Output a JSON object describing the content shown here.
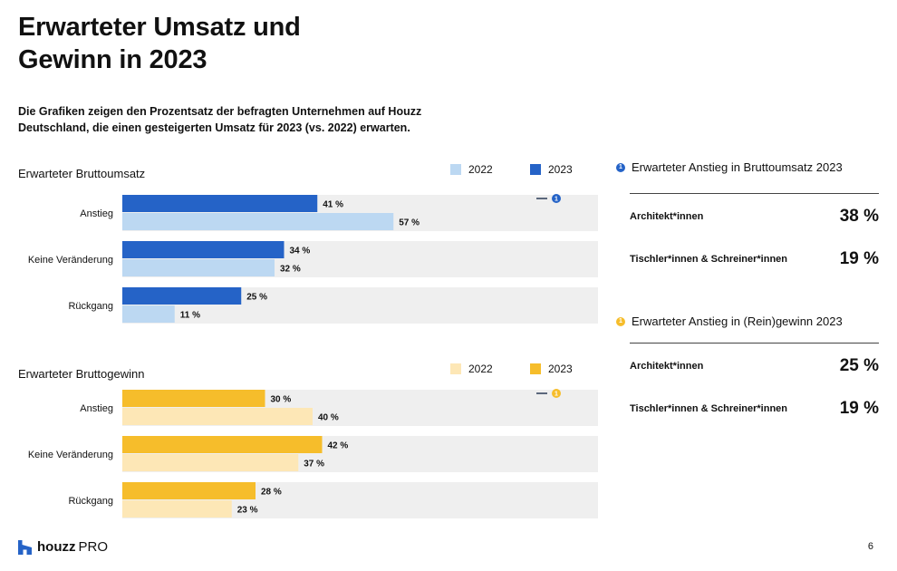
{
  "title": "Erwarteter Umsatz und Gewinn in 2023",
  "subtitle": "Die Grafiken zeigen den Prozentsatz der befragten Unternehmen auf Houzz Deutschland, die einen gesteigerten Umsatz für 2023 (vs. 2022) erwarten.",
  "chart_data": [
    {
      "type": "bar",
      "orientation": "horizontal",
      "title": "Erwarteter Bruttoumsatz",
      "categories": [
        "Anstieg",
        "Keine Veränderung",
        "Rückgang"
      ],
      "series": [
        {
          "name": "2023",
          "color": "#2563c7",
          "values": [
            41,
            34,
            25
          ],
          "labels": [
            "41 %",
            "34 %",
            "25 %"
          ]
        },
        {
          "name": "2022",
          "color": "#bcd8f2",
          "values": [
            57,
            32,
            11
          ],
          "labels": [
            "57 %",
            "32 %",
            "11 %"
          ]
        }
      ],
      "xlim": [
        0,
        100
      ],
      "grid": false,
      "legend_position": "top-right",
      "marker_number": "1"
    },
    {
      "type": "bar",
      "orientation": "horizontal",
      "title": "Erwarteter Bruttogewinn",
      "categories": [
        "Anstieg",
        "Keine Veränderung",
        "Rückgang"
      ],
      "series": [
        {
          "name": "2023",
          "color": "#f6bd2b",
          "values": [
            30,
            42,
            28
          ],
          "labels": [
            "30 %",
            "42 %",
            "28 %"
          ]
        },
        {
          "name": "2022",
          "color": "#fde7b6",
          "values": [
            40,
            37,
            23
          ],
          "labels": [
            "40 %",
            "37 %",
            "23 %"
          ]
        }
      ],
      "xlim": [
        0,
        100
      ],
      "grid": false,
      "legend_position": "top-right",
      "marker_number": "1"
    }
  ],
  "sidebar": [
    {
      "number": "1",
      "color": "#2563c7",
      "title": "Erwarteter Anstieg in Bruttoumsatz 2023",
      "rows": [
        {
          "label": "Architekt*innen",
          "value": "38 %"
        },
        {
          "label": "Tischler*innen & Schreiner*innen",
          "value": "19 %"
        }
      ]
    },
    {
      "number": "1",
      "color": "#f6bd2b",
      "title": "Erwarteter Anstieg in (Rein)gewinn 2023",
      "rows": [
        {
          "label": "Architekt*innen",
          "value": "25 %"
        },
        {
          "label": "Tischler*innen & Schreiner*innen",
          "value": "19 %"
        }
      ]
    }
  ],
  "footer": {
    "logo_word": "houzz",
    "logo_suffix": "PRO",
    "logo_color": "#2563c7",
    "page_number": "6"
  }
}
